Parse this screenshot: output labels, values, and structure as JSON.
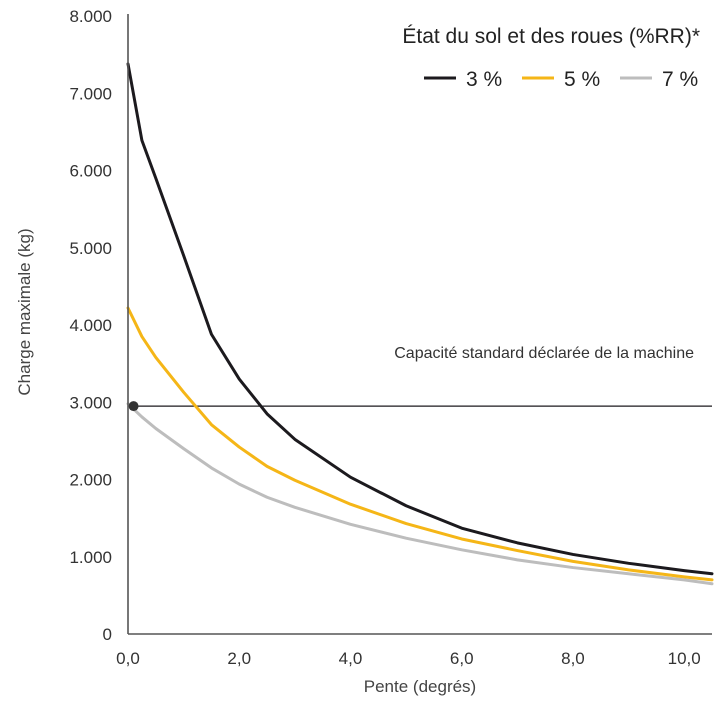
{
  "chart_data": {
    "type": "line",
    "title": "",
    "xlabel": "Pente (degrés)",
    "ylabel": "Charge maximale (kg)",
    "xlim": [
      0,
      10.5
    ],
    "ylim": [
      0,
      8000
    ],
    "x_ticks": [
      {
        "value": 0,
        "label": "0,0"
      },
      {
        "value": 2,
        "label": "2,0"
      },
      {
        "value": 4,
        "label": "4,0"
      },
      {
        "value": 6,
        "label": "6,0"
      },
      {
        "value": 8,
        "label": "8,0"
      },
      {
        "value": 10,
        "label": "10,0"
      }
    ],
    "y_ticks": [
      {
        "value": 0,
        "label": "0"
      },
      {
        "value": 1000,
        "label": "1.000"
      },
      {
        "value": 2000,
        "label": "2.000"
      },
      {
        "value": 3000,
        "label": "3.000"
      },
      {
        "value": 4000,
        "label": "4.000"
      },
      {
        "value": 5000,
        "label": "5.000"
      },
      {
        "value": 6000,
        "label": "6.000"
      },
      {
        "value": 7000,
        "label": "7.000"
      },
      {
        "value": 8000,
        "label": "8.000"
      }
    ],
    "grid": false,
    "legend": {
      "title": "État du sol et des roues (%RR)*",
      "placement": "top-right"
    },
    "series": [
      {
        "name": "3 %",
        "color": "#1c1a1e",
        "x": [
          0,
          0.25,
          0.5,
          1.0,
          1.5,
          2.0,
          2.5,
          3.0,
          4.0,
          5.0,
          6.0,
          7.0,
          8.0,
          9.0,
          10.0,
          10.5
        ],
        "y": [
          7380,
          6390,
          5900,
          4900,
          3880,
          3300,
          2850,
          2520,
          2030,
          1660,
          1370,
          1180,
          1030,
          915,
          820,
          780
        ]
      },
      {
        "name": "5 %",
        "color": "#f5b617",
        "x": [
          0,
          0.25,
          0.5,
          1.0,
          1.5,
          2.0,
          2.5,
          3.0,
          4.0,
          5.0,
          6.0,
          7.0,
          8.0,
          9.0,
          10.0,
          10.5
        ],
        "y": [
          4220,
          3850,
          3580,
          3130,
          2710,
          2420,
          2170,
          1990,
          1680,
          1430,
          1230,
          1080,
          940,
          830,
          740,
          700
        ]
      },
      {
        "name": "7 %",
        "color": "#bdbdbd",
        "x": [
          0,
          0.25,
          0.5,
          1.0,
          1.5,
          2.0,
          2.5,
          3.0,
          4.0,
          5.0,
          6.0,
          7.0,
          8.0,
          9.0,
          10.0,
          10.5
        ],
        "y": [
          2980,
          2810,
          2660,
          2400,
          2150,
          1940,
          1770,
          1640,
          1420,
          1240,
          1090,
          960,
          860,
          780,
          700,
          650
        ]
      }
    ],
    "reference_line": {
      "label": "Capacité standard déclarée de la machine",
      "y": 2950,
      "x_start": 0.1,
      "x_end": 10.5,
      "color": "#1c1a1e"
    }
  }
}
